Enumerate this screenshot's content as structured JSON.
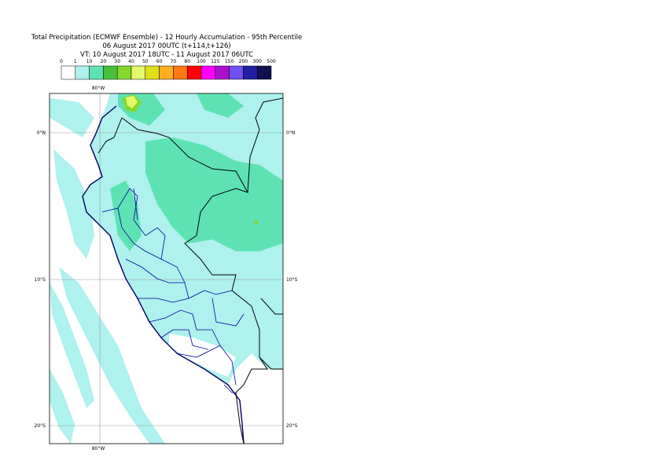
{
  "title": {
    "line1": "Total Precipitation (ECMWF Ensemble) - 12 Hourly Accumulation - 95th Percentile",
    "line2": "06 August 2017 00UTC (t+114,t+126)",
    "line3": "VT: 10 August 2017 18UTC - 11 August 2017 06UTC"
  },
  "legend": {
    "labels": [
      0,
      1,
      10,
      20,
      30,
      40,
      50,
      60,
      70,
      80,
      100,
      125,
      150,
      200,
      300,
      500
    ],
    "colors": [
      "#ffffff",
      "#aef1ee",
      "#5ee2b4",
      "#47bf3c",
      "#84d82c",
      "#e4f86c",
      "#e0e01c",
      "#ffb020",
      "#ff7a10",
      "#ff0000",
      "#ff00ff",
      "#aa10cc",
      "#7050f0",
      "#2020a0",
      "#101050"
    ]
  },
  "map": {
    "lon_labels": [
      "80°W"
    ],
    "lat_labels": [
      "0°N",
      "10°S",
      "20°S"
    ]
  }
}
